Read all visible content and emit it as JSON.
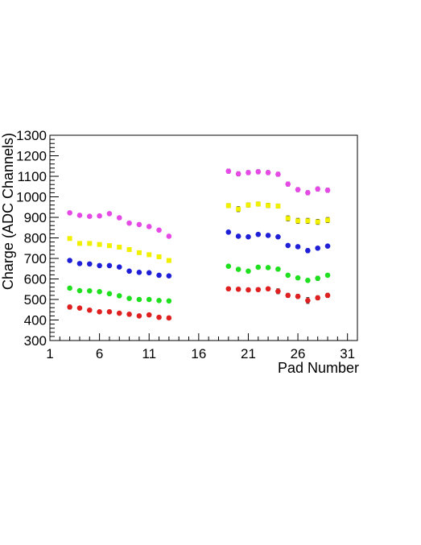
{
  "chart_data": {
    "type": "scatter",
    "xlabel": "Pad Number",
    "ylabel": "Charge (ADC Channels)",
    "xlim": [
      1,
      32
    ],
    "ylim": [
      300,
      1300
    ],
    "x_ticks": [
      1,
      6,
      11,
      16,
      21,
      26,
      31
    ],
    "y_ticks": [
      300,
      400,
      500,
      600,
      700,
      800,
      900,
      1000,
      1100,
      1200,
      1300
    ],
    "x": [
      3,
      4,
      5,
      6,
      7,
      8,
      9,
      10,
      11,
      12,
      13,
      19,
      20,
      21,
      22,
      23,
      24,
      25,
      26,
      27,
      28,
      29
    ],
    "series": [
      {
        "color": "#e64ae6",
        "marker": "circle",
        "values": [
          922,
          910,
          905,
          907,
          918,
          898,
          872,
          865,
          855,
          838,
          808,
          1125,
          1112,
          1118,
          1122,
          1118,
          1110,
          1062,
          1035,
          1020,
          1038,
          1032
        ],
        "errors": [
          8,
          8,
          8,
          8,
          8,
          8,
          8,
          8,
          8,
          8,
          8,
          10,
          10,
          10,
          10,
          10,
          10,
          10,
          10,
          10,
          10,
          10
        ]
      },
      {
        "color": "#f0f000",
        "marker": "square",
        "values": [
          797,
          773,
          773,
          768,
          762,
          755,
          743,
          728,
          718,
          708,
          690,
          957,
          940,
          960,
          965,
          958,
          955,
          895,
          883,
          883,
          878,
          887
        ],
        "errors": [
          8,
          8,
          8,
          8,
          8,
          8,
          8,
          8,
          8,
          8,
          8,
          10,
          12,
          10,
          10,
          10,
          10,
          12,
          12,
          12,
          12,
          12
        ]
      },
      {
        "color": "#1f1fd8",
        "marker": "circle",
        "values": [
          690,
          675,
          673,
          665,
          665,
          658,
          638,
          632,
          630,
          618,
          615,
          828,
          808,
          805,
          817,
          812,
          805,
          763,
          757,
          738,
          750,
          760
        ],
        "errors": [
          6,
          6,
          6,
          6,
          6,
          6,
          6,
          6,
          6,
          6,
          6,
          8,
          8,
          8,
          8,
          8,
          8,
          8,
          8,
          10,
          8,
          8
        ]
      },
      {
        "color": "#1fe01f",
        "marker": "circle",
        "values": [
          555,
          543,
          542,
          538,
          528,
          518,
          505,
          500,
          500,
          495,
          493,
          662,
          647,
          638,
          657,
          655,
          648,
          618,
          605,
          593,
          603,
          618
        ],
        "errors": [
          6,
          6,
          6,
          6,
          6,
          6,
          6,
          6,
          6,
          6,
          6,
          8,
          8,
          8,
          8,
          8,
          8,
          8,
          8,
          8,
          10,
          8
        ]
      },
      {
        "color": "#e02020",
        "marker": "circle",
        "values": [
          463,
          458,
          448,
          440,
          440,
          433,
          428,
          420,
          425,
          413,
          410,
          552,
          550,
          547,
          548,
          552,
          540,
          520,
          515,
          495,
          508,
          520
        ],
        "errors": [
          10,
          8,
          8,
          8,
          8,
          8,
          8,
          8,
          8,
          8,
          8,
          8,
          8,
          8,
          8,
          8,
          12,
          10,
          10,
          14,
          10,
          10
        ]
      }
    ]
  }
}
